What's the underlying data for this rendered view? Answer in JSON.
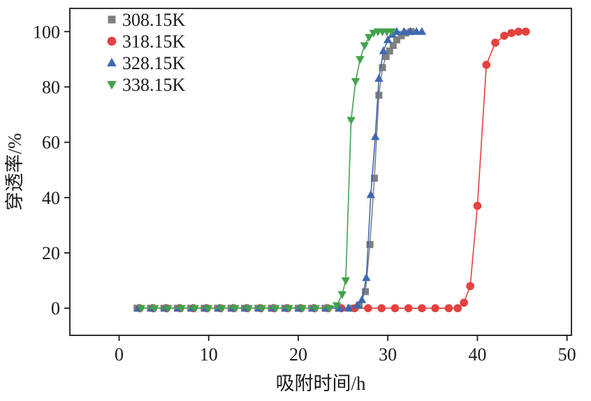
{
  "figure": {
    "description": "Breakthrough rate vs adsorption time curves at four temperatures"
  },
  "chart_data": {
    "type": "line",
    "title": "",
    "xlabel": "吸附时间/h",
    "ylabel": "穿透率/%",
    "xlim": [
      -5.5,
      50.5
    ],
    "ylim": [
      -9.8,
      108.4
    ],
    "xticks": [
      0,
      10,
      20,
      30,
      40,
      50
    ],
    "yticks": [
      0,
      20,
      40,
      60,
      80,
      100
    ],
    "grid": false,
    "legend_position": "top-left",
    "axis_color": "#1a1a1a",
    "series": [
      {
        "name": "308.15K",
        "color": "#7f7f7f",
        "marker": "square",
        "x": [
          2,
          3.5,
          5,
          6.5,
          8,
          9.5,
          11,
          12.5,
          14,
          15.5,
          17,
          18.5,
          20,
          21.5,
          23,
          24.5,
          25.8,
          26.8,
          27.5,
          28,
          28.5,
          29,
          29.4,
          29.8,
          30.2,
          30.6,
          31,
          31.5,
          32,
          32.6
        ],
        "y": [
          0,
          0,
          0,
          0,
          0,
          0,
          0,
          0,
          0,
          0,
          0,
          0,
          0,
          0,
          0,
          0,
          0,
          1,
          6,
          23,
          47,
          77,
          87,
          91,
          93,
          95,
          97,
          98.5,
          99.5,
          100
        ]
      },
      {
        "name": "318.15K",
        "color": "#e5413e",
        "marker": "circle",
        "x": [
          2.3,
          3.8,
          5.3,
          6.8,
          8.3,
          9.8,
          11.3,
          12.8,
          14.3,
          15.8,
          17.3,
          18.8,
          20.3,
          21.8,
          23.3,
          24.8,
          26.3,
          27.8,
          29.3,
          30.8,
          32.3,
          33.8,
          35.3,
          36.8,
          37.8,
          38.5,
          39.2,
          40,
          41,
          42,
          43,
          43.8,
          44.6,
          45.4
        ],
        "y": [
          0,
          0,
          0,
          0,
          0,
          0,
          0,
          0,
          0,
          0,
          0,
          0,
          0,
          0,
          0,
          0,
          0,
          0,
          0,
          0,
          0,
          0,
          0,
          0,
          0,
          2,
          8,
          37,
          88,
          96,
          98.5,
          99.5,
          100,
          100
        ]
      },
      {
        "name": "328.15K",
        "color": "#3f68b3",
        "marker": "triangle-up",
        "x": [
          2.15,
          3.65,
          5.15,
          6.65,
          8.15,
          9.65,
          11.15,
          12.65,
          14.15,
          15.65,
          17.15,
          18.65,
          20.15,
          21.65,
          23.15,
          24.6,
          25.6,
          26.6,
          27.1,
          27.6,
          28.1,
          28.6,
          29,
          29.5,
          30,
          30.5,
          31,
          31.8,
          32.5,
          33.2,
          33.8
        ],
        "y": [
          0,
          0,
          0,
          0,
          0,
          0,
          0,
          0,
          0,
          0,
          0,
          0,
          0,
          0,
          0,
          0,
          0,
          1,
          3,
          11,
          41,
          62,
          83,
          93,
          97,
          99,
          100,
          100,
          100,
          100,
          100
        ]
      },
      {
        "name": "338.15K",
        "color": "#42a24c",
        "marker": "triangle-down",
        "x": [
          2.45,
          3.95,
          5.45,
          6.95,
          8.45,
          9.95,
          11.45,
          12.95,
          14.45,
          15.95,
          17.45,
          18.95,
          20.45,
          21.95,
          23.45,
          24.3,
          24.9,
          25.3,
          25.9,
          26.4,
          26.9,
          27.4,
          27.9,
          28.4,
          28.9,
          29.4,
          29.9,
          30.4
        ],
        "y": [
          0,
          0,
          0,
          0,
          0,
          0,
          0,
          0,
          0,
          0,
          0,
          0,
          0,
          0,
          0,
          1,
          5,
          10,
          68,
          82,
          90,
          95,
          98,
          99.5,
          100,
          100,
          100,
          100
        ]
      }
    ]
  }
}
